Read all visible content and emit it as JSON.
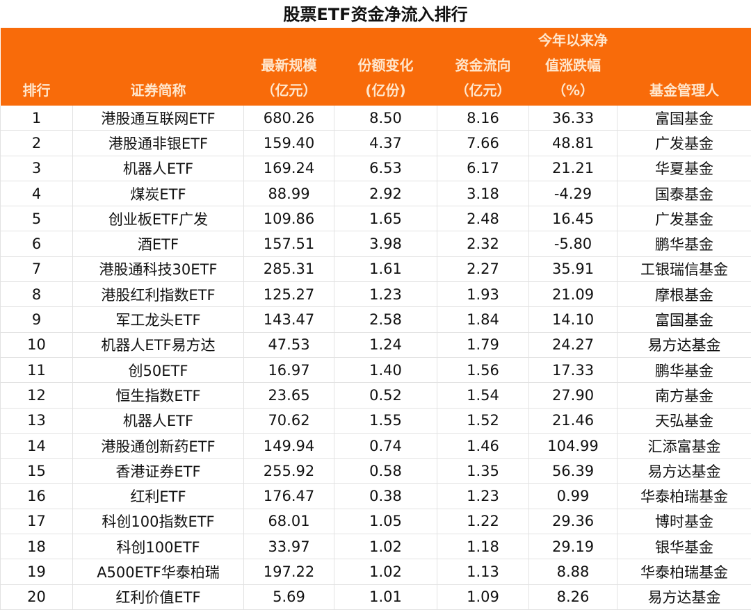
{
  "title": "股票ETF资金净流入排行",
  "header_color": "#f86b0a",
  "columns": [
    "排行",
    "证券简称",
    "最新规模\n（亿元）",
    "份额变化\n(亿份)",
    "资金流向\n（亿元）",
    "今年以来净\n值涨跌幅\n（%）",
    "基金管理人"
  ],
  "rows": [
    [
      "1",
      "港股通互联网ETF",
      "680.26",
      "8.50",
      "8.16",
      "36.33",
      "富国基金"
    ],
    [
      "2",
      "港股通非银ETF",
      "159.40",
      "4.37",
      "7.66",
      "48.81",
      "广发基金"
    ],
    [
      "3",
      "机器人ETF",
      "169.24",
      "6.53",
      "6.17",
      "21.21",
      "华夏基金"
    ],
    [
      "4",
      "煤炭ETF",
      "88.99",
      "2.92",
      "3.18",
      "-4.29",
      "国泰基金"
    ],
    [
      "5",
      "创业板ETF广发",
      "109.86",
      "1.65",
      "2.48",
      "16.45",
      "广发基金"
    ],
    [
      "6",
      "酒ETF",
      "157.51",
      "3.98",
      "2.32",
      "-5.80",
      "鹏华基金"
    ],
    [
      "7",
      "港股通科技30ETF",
      "285.31",
      "1.61",
      "2.27",
      "35.91",
      "工银瑞信基金"
    ],
    [
      "8",
      "港股红利指数ETF",
      "125.27",
      "1.23",
      "1.93",
      "21.09",
      "摩根基金"
    ],
    [
      "9",
      "军工龙头ETF",
      "143.47",
      "2.58",
      "1.84",
      "14.10",
      "富国基金"
    ],
    [
      "10",
      "机器人ETF易方达",
      "47.53",
      "1.24",
      "1.79",
      "24.27",
      "易方达基金"
    ],
    [
      "11",
      "创50ETF",
      "16.97",
      "1.40",
      "1.56",
      "17.33",
      "鹏华基金"
    ],
    [
      "12",
      "恒生指数ETF",
      "23.65",
      "0.52",
      "1.54",
      "27.90",
      "南方基金"
    ],
    [
      "13",
      "机器人ETF",
      "70.62",
      "1.55",
      "1.52",
      "21.46",
      "天弘基金"
    ],
    [
      "14",
      "港股通创新药ETF",
      "149.94",
      "0.74",
      "1.46",
      "104.99",
      "汇添富基金"
    ],
    [
      "15",
      "香港证券ETF",
      "255.92",
      "0.58",
      "1.35",
      "56.39",
      "易方达基金"
    ],
    [
      "16",
      "红利ETF",
      "176.47",
      "0.38",
      "1.23",
      "0.99",
      "华泰柏瑞基金"
    ],
    [
      "17",
      "科创100指数ETF",
      "68.01",
      "1.05",
      "1.22",
      "29.36",
      "博时基金"
    ],
    [
      "18",
      "科创100ETF",
      "33.97",
      "1.02",
      "1.18",
      "29.19",
      "银华基金"
    ],
    [
      "19",
      "A500ETF华泰柏瑞",
      "197.22",
      "1.02",
      "1.13",
      "8.88",
      "华泰柏瑞基金"
    ],
    [
      "20",
      "红利价值ETF",
      "5.69",
      "1.01",
      "1.09",
      "8.26",
      "易方达基金"
    ]
  ]
}
